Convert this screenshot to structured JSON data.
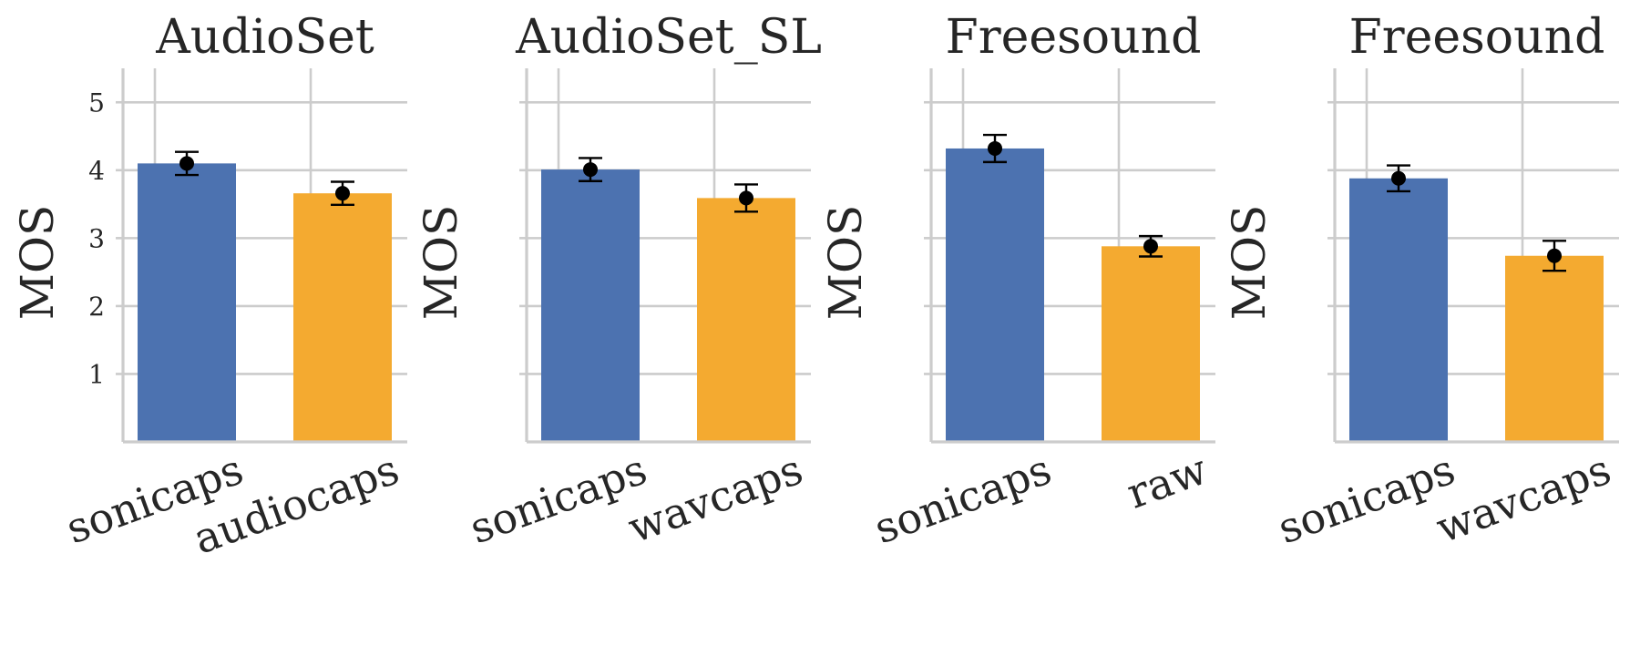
{
  "chart_data": [
    {
      "type": "bar",
      "title": "AudioSet",
      "ylabel": "MOS",
      "ylim": [
        0,
        5.5
      ],
      "yticks": [
        1,
        2,
        3,
        4,
        5
      ],
      "grid": true,
      "categories": [
        "sonicaps",
        "audiocaps"
      ],
      "values": [
        4.1,
        3.66
      ],
      "error": [
        0.17,
        0.17
      ],
      "colors": [
        "#4c72b0",
        "#f4aa30"
      ]
    },
    {
      "type": "bar",
      "title": "AudioSet_SL",
      "ylabel": "MOS",
      "ylim": [
        0,
        5.5
      ],
      "yticks": [
        1,
        2,
        3,
        4,
        5
      ],
      "grid": true,
      "categories": [
        "sonicaps",
        "wavcaps"
      ],
      "values": [
        4.01,
        3.59
      ],
      "error": [
        0.17,
        0.2
      ],
      "colors": [
        "#4c72b0",
        "#f4aa30"
      ]
    },
    {
      "type": "bar",
      "title": "Freesound",
      "ylabel": "MOS",
      "ylim": [
        0,
        5.5
      ],
      "yticks": [
        1,
        2,
        3,
        4,
        5
      ],
      "grid": true,
      "categories": [
        "sonicaps",
        "raw"
      ],
      "values": [
        4.32,
        2.88
      ],
      "error": [
        0.2,
        0.15
      ],
      "colors": [
        "#4c72b0",
        "#f4aa30"
      ]
    },
    {
      "type": "bar",
      "title": "Freesound",
      "ylabel": "MOS",
      "ylim": [
        0,
        5.5
      ],
      "yticks": [
        1,
        2,
        3,
        4,
        5
      ],
      "grid": true,
      "categories": [
        "sonicaps",
        "wavcaps"
      ],
      "values": [
        3.88,
        2.74
      ],
      "error": [
        0.19,
        0.22
      ],
      "colors": [
        "#4c72b0",
        "#f4aa30"
      ]
    }
  ]
}
